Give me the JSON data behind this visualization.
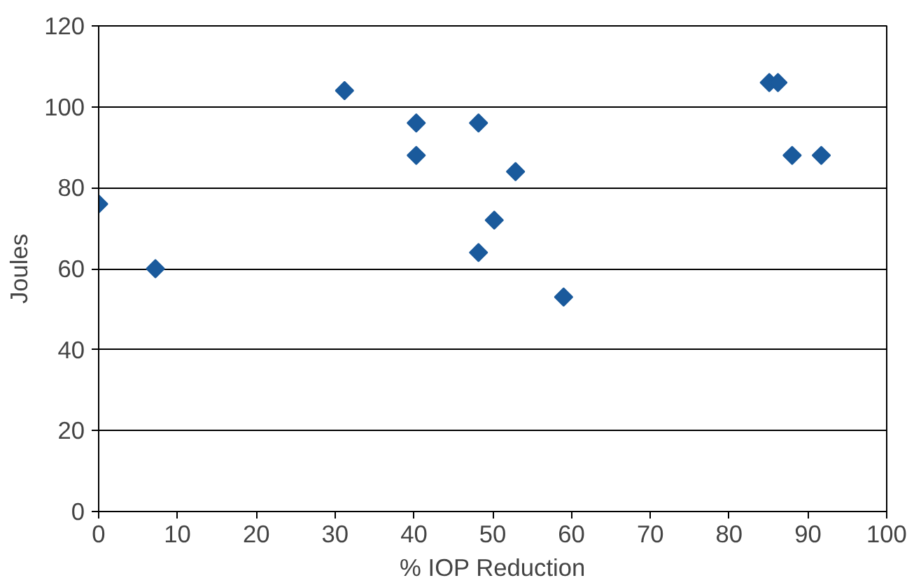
{
  "chart_data": {
    "type": "scatter",
    "xlabel": "% IOP Reduction",
    "ylabel": "Joules",
    "x": [
      0,
      7.2,
      31.2,
      40.3,
      40.3,
      48.2,
      52.9,
      50.2,
      48.2,
      59,
      85.1,
      86.2,
      88,
      91.7
    ],
    "series": [
      {
        "color": "#1a5a9c",
        "values": [
          76,
          60,
          104,
          96,
          88,
          96,
          84,
          72,
          64,
          53,
          106,
          106,
          88,
          88
        ]
      }
    ],
    "xlim": [
      0,
      100
    ],
    "xticks": [
      0,
      10,
      20,
      30,
      40,
      50,
      60,
      70,
      80,
      90,
      100
    ],
    "ylim": [
      0,
      120
    ],
    "yticks": [
      0,
      20,
      40,
      60,
      80,
      100,
      120
    ],
    "grid": "y",
    "marker": "diamond"
  }
}
